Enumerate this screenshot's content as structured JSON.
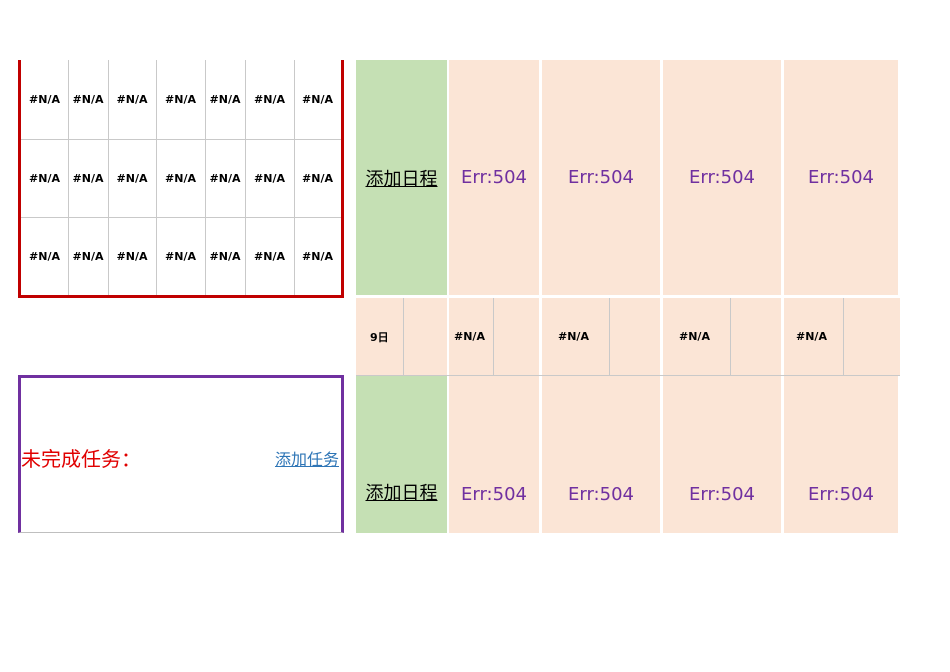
{
  "mini_calendar": {
    "rows": [
      [
        "#N/A",
        "#N/A",
        "#N/A",
        "#N/A",
        "#N/A",
        "#N/A",
        "#N/A"
      ],
      [
        "#N/A",
        "#N/A",
        "#N/A",
        "#N/A",
        "#N/A",
        "#N/A",
        "#N/A"
      ],
      [
        "#N/A",
        "#N/A",
        "#N/A",
        "#N/A",
        "#N/A",
        "#N/A",
        "#N/A"
      ]
    ]
  },
  "tasks": {
    "title": "未完成任务：",
    "add_label": "添加任务"
  },
  "schedule": {
    "add_label": "添加日程",
    "day_row": {
      "day": "9日",
      "cells": [
        "#N/A",
        "#N/A",
        "#N/A",
        "#N/A"
      ]
    },
    "top_row": [
      "Err:504",
      "Err:504",
      "Err:504",
      "Err:504"
    ],
    "bottom_row": [
      "Err:504",
      "Err:504",
      "Err:504",
      "Err:504"
    ]
  },
  "colors": {
    "calendar_border": "#c00000",
    "tasks_border": "#7030a0",
    "tasks_title": "#e00000",
    "link": "#2e75b6",
    "schedule_green": "#c5e0b4",
    "schedule_peach": "#fbe5d6",
    "error_text": "#7030a0"
  }
}
